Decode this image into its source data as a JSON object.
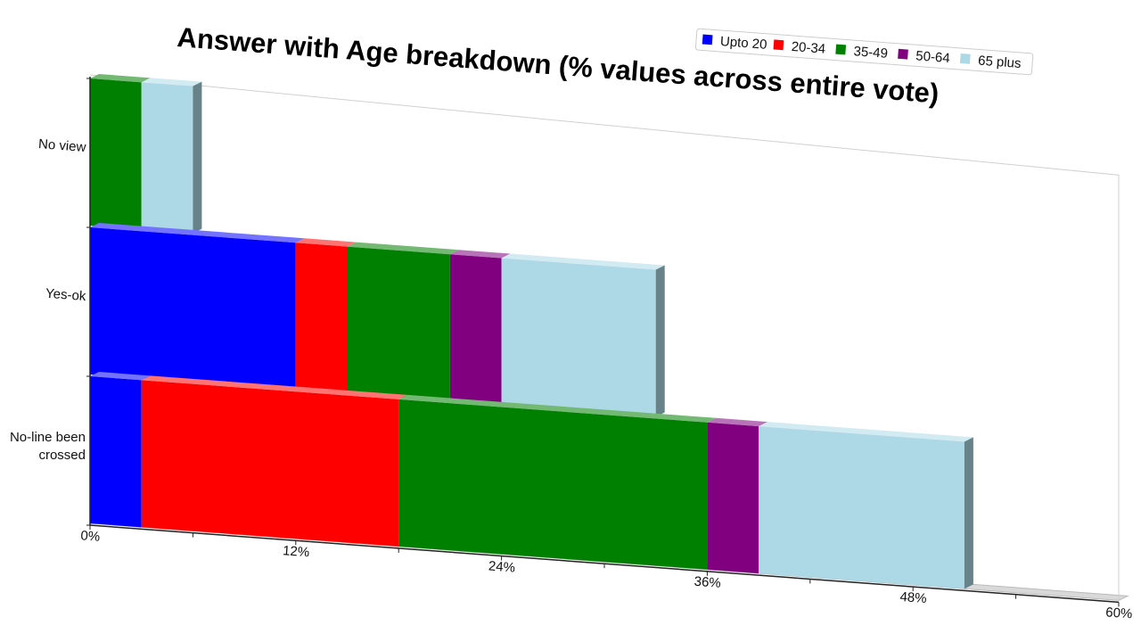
{
  "chart_data": {
    "type": "bar",
    "orientation": "horizontal",
    "stacked": true,
    "title": "Answer with Age breakdown (% values across entire vote)",
    "categories": [
      "No view",
      "Yes-ok",
      "No-line been crossed"
    ],
    "series": [
      {
        "name": "Upto 20",
        "color": "#0000ff",
        "values": [
          0,
          12,
          3
        ]
      },
      {
        "name": "20-34",
        "color": "#ff0000",
        "values": [
          0,
          3,
          15
        ]
      },
      {
        "name": "35-49",
        "color": "#008000",
        "values": [
          3,
          6,
          18
        ]
      },
      {
        "name": "50-64",
        "color": "#800080",
        "values": [
          0,
          3,
          3
        ]
      },
      {
        "name": "65 plus",
        "color": "#add8e6",
        "values": [
          3,
          9,
          12
        ]
      }
    ],
    "xlim": [
      0,
      60
    ],
    "x_ticks": [
      "0%",
      "12%",
      "24%",
      "36%",
      "48%",
      "60%"
    ],
    "legend_position": "top-right",
    "grid": false
  }
}
